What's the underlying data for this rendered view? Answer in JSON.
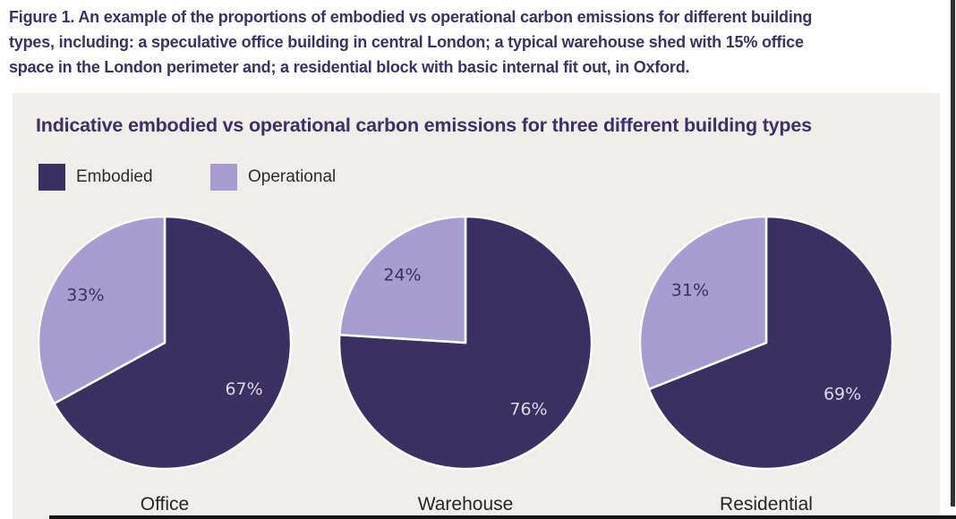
{
  "figure_caption": {
    "lines": [
      "Figure 1. An example of the proportions of embodied vs operational carbon emissions for different building",
      "types, including: a speculative office building in central London; a typical warehouse shed with 15% office",
      "space in the London perimeter and; a residential block with basic internal fit out, in Oxford."
    ]
  },
  "panel": {
    "title": "Indicative embodied vs operational carbon emissions for three different building types"
  },
  "legend": [
    {
      "label": "Embodied",
      "color": "#3a3062"
    },
    {
      "label": "Operational",
      "color": "#a79dd0"
    }
  ],
  "colors": {
    "embodied": "#3a3062",
    "operational": "#a79dd0",
    "panel_background": "#f0edeb",
    "title_text": "#3a3166",
    "pct_label_on_dark": "#dcd9e6",
    "pct_label_on_light": "#3a3062",
    "slice_divider": "#fdfdfd"
  },
  "chart_data": {
    "type": "pie",
    "title": "Indicative embodied vs operational carbon emissions for three different building types",
    "series_labels": [
      "Embodied",
      "Operational"
    ],
    "layout": {
      "start_angle_deg": 0,
      "direction": "clockwise",
      "legend_position": "top-left",
      "label_radius_fraction": 0.73
    },
    "pies": [
      {
        "category": "Office",
        "values": [
          {
            "name": "Embodied",
            "pct": 67,
            "label": "67%"
          },
          {
            "name": "Operational",
            "pct": 33,
            "label": "33%"
          }
        ]
      },
      {
        "category": "Warehouse",
        "values": [
          {
            "name": "Embodied",
            "pct": 76,
            "label": "76%"
          },
          {
            "name": "Operational",
            "pct": 24,
            "label": "24%"
          }
        ]
      },
      {
        "category": "Residential",
        "values": [
          {
            "name": "Embodied",
            "pct": 69,
            "label": "69%"
          },
          {
            "name": "Operational",
            "pct": 31,
            "label": "31%"
          }
        ]
      }
    ]
  }
}
